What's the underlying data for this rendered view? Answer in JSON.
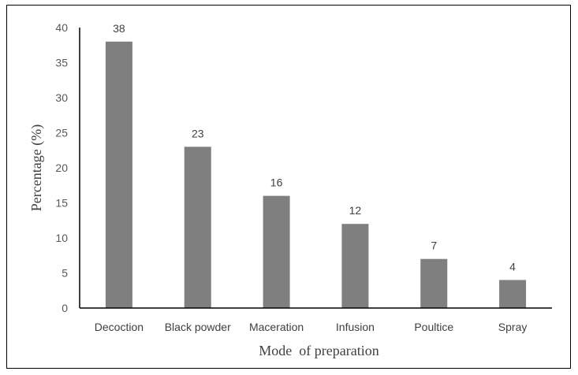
{
  "chart_data": {
    "type": "bar",
    "categories": [
      "Decoction",
      "Black powder",
      "Maceration",
      "Infusion",
      "Poultice",
      "Spray"
    ],
    "values": [
      38,
      23,
      16,
      12,
      7,
      4
    ],
    "data_labels": [
      "38",
      "23",
      "16",
      "12",
      "7",
      "4"
    ],
    "xlabel": "Mode  of preparation",
    "ylabel": "Percentage (%)",
    "ylim": [
      0,
      40
    ],
    "yticks": [
      0,
      5,
      10,
      15,
      20,
      25,
      30,
      35,
      40
    ],
    "grid": false,
    "legend": "none",
    "colors": {
      "bar": "#7f7f7f",
      "axis": "#000000",
      "text": "#404040"
    }
  }
}
